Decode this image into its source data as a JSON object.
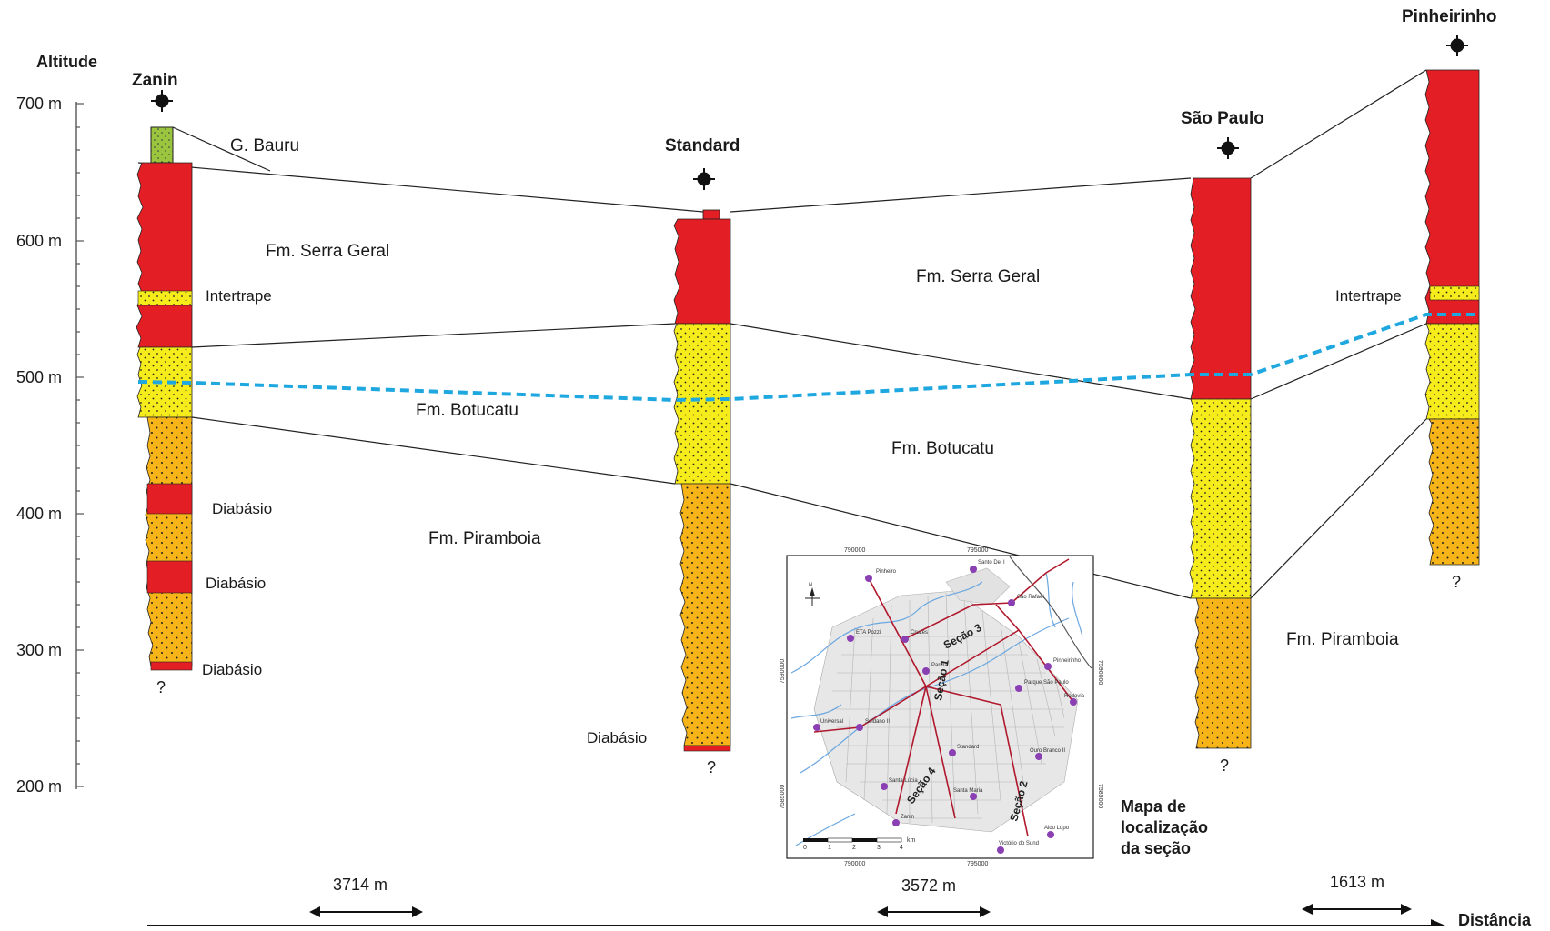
{
  "colors": {
    "basalt": "#e31e24",
    "sandstone_botucatu": "#f7ec1b",
    "sandstone_piramboia": "#f7b418",
    "bauru": "#9bc43f",
    "water_level": "#1fa8e0"
  },
  "axis": {
    "title": "Altitude",
    "ticks": [
      "700 m",
      "600 m",
      "500 m",
      "400 m",
      "300 m",
      "200 m"
    ],
    "distance_label": "Distância",
    "distances": [
      "3714 m",
      "3572 m",
      "1613 m"
    ]
  },
  "wells": [
    {
      "name": "Zanin",
      "bottom": "?"
    },
    {
      "name": "Standard",
      "bottom": "?"
    },
    {
      "name": "São Paulo",
      "bottom": "?"
    },
    {
      "name": "Pinheirinho",
      "bottom": "?"
    }
  ],
  "unit_labels": {
    "bauru": "G. Bauru",
    "serra_geral_left": "Fm. Serra Geral",
    "serra_geral_right": "Fm. Serra Geral",
    "intertrape_left": "Intertrape",
    "intertrape_right": "Intertrape",
    "botucatu_left": "Fm. Botucatu",
    "botucatu_right": "Fm. Botucatu",
    "piramboia_left": "Fm. Piramboia",
    "piramboia_right": "Fm. Piramboia",
    "diabasio_1": "Diabásio",
    "diabasio_2": "Diabásio",
    "diabasio_3": "Diabásio",
    "diabasio_4": "Diabásio"
  },
  "inset_map": {
    "caption": [
      "Mapa de",
      "localização",
      "da seção"
    ],
    "coords_top": [
      "790000",
      "795000"
    ],
    "coords_bottom": [
      "790000",
      "795000"
    ],
    "coords_left": [
      "7590000",
      "7585000"
    ],
    "coords_right": [
      "7590000",
      "7585000"
    ],
    "sections": [
      "Seção 1",
      "Seção 2",
      "Seção 3",
      "Seção 4"
    ],
    "scale_ticks": [
      "0",
      "1",
      "2",
      "3",
      "4"
    ],
    "scale_unit": "km",
    "north_symbol": "N",
    "place_labels": [
      "Pinheiro",
      "Santo Dei I",
      "São Rafael",
      "ETA Pozzi",
      "Cruzes",
      "Parma",
      "Pinheirinho",
      "Parque São Paulo",
      "Rodovia",
      "Universal",
      "Soldano II",
      "Standard",
      "Ouro Branco II",
      "Santa Lúcia",
      "Santa Maria",
      "Zanin",
      "Aldo Lupo",
      "Victório do Sund"
    ]
  }
}
